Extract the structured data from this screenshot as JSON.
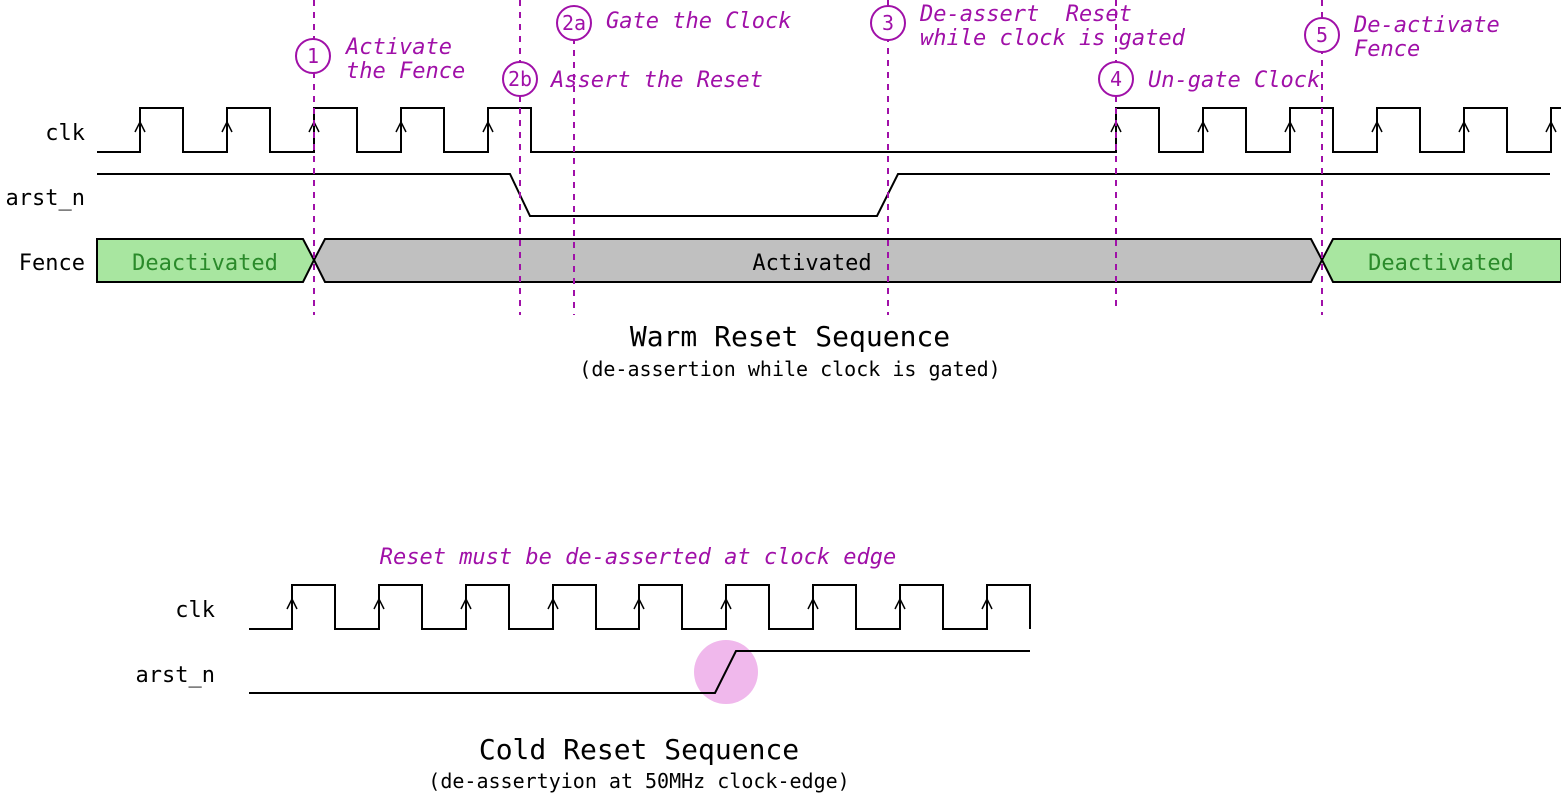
{
  "colors": {
    "annotation": "#a010a8",
    "deactivated_fill": "#a8e6a0",
    "deactivated_text": "#2a8a2a",
    "activated_fill": "#c0c0c0",
    "highlight": "#f0b8ec"
  },
  "warm": {
    "signals": {
      "clk": "clk",
      "arst": "arst_n",
      "fence": "Fence"
    },
    "fence_states": {
      "deactivated_left": "Deactivated",
      "activated": "Activated",
      "deactivated_right": "Deactivated"
    },
    "steps": {
      "s1": {
        "num": "1",
        "line1": "Activate",
        "line2": "the Fence"
      },
      "s2a": {
        "num": "2a",
        "line1": "Gate the Clock"
      },
      "s2b": {
        "num": "2b",
        "line1": "Assert the Reset"
      },
      "s3": {
        "num": "3",
        "line1": "De-assert  Reset",
        "line2": "while clock is gated"
      },
      "s4": {
        "num": "4",
        "line1": "Un-gate Clock"
      },
      "s5": {
        "num": "5",
        "line1": "De-activate",
        "line2": "Fence"
      }
    },
    "title": "Warm Reset Sequence",
    "subtitle": "(de-assertion while clock is gated)"
  },
  "cold": {
    "signals": {
      "clk": "clk",
      "arst": "arst_n"
    },
    "note": "Reset must be de-asserted at clock edge",
    "title": "Cold Reset Sequence",
    "subtitle": "(de-assertyion at 50MHz clock-edge)"
  }
}
